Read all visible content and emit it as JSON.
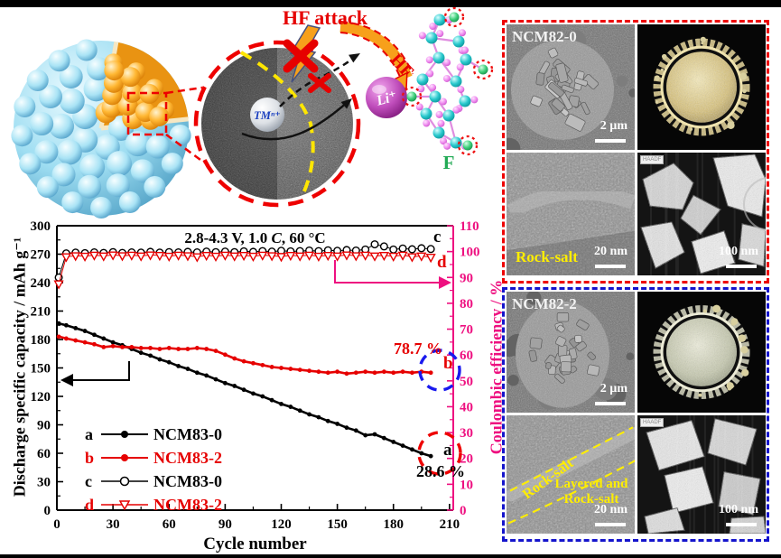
{
  "scene": {
    "hf_attack": "HF attack",
    "hf": "HF",
    "li_ion": "Li⁺",
    "tm_ion": "TMⁿ⁺",
    "fluorine": "F"
  },
  "chart": {
    "condition_prefix": "2.8-4.3 V, 1.0 ",
    "condition_italic": "C",
    "condition_suffix": ", 60 °C",
    "x_label": "Cycle number",
    "y_left_label": "Discharge specific capacity / mAh g⁻¹",
    "y_right_label": "Coulombic efficiency / %",
    "legend": [
      {
        "key": "a",
        "label": "NCM83-0"
      },
      {
        "key": "b",
        "label": "NCM83-2"
      },
      {
        "key": "c",
        "label": "NCM83-0"
      },
      {
        "key": "d",
        "label": "NCM83-2"
      }
    ],
    "annotations": {
      "b_retention": "78.7 %",
      "a_retention": "28.6 %",
      "end_label_a": "a",
      "end_label_b": "b",
      "end_label_c": "c",
      "end_label_d": "d"
    },
    "colors": {
      "right_axis": "#ee1080",
      "series_red": "#e60000",
      "series_black": "#000000",
      "circle_blue": "#1a1aee",
      "circle_red": "#ee0000"
    }
  },
  "chart_data": {
    "type": "line",
    "title": "2.8-4.3 V, 1.0 C, 60 °C",
    "xlabel": "Cycle number",
    "ylabel_left": "Discharge specific capacity / mAh g⁻¹",
    "ylabel_right": "Coulombic efficiency / %",
    "xlim": [
      0,
      212
    ],
    "x_ticks": [
      0,
      30,
      60,
      90,
      120,
      150,
      180,
      210
    ],
    "ylim_left": [
      0,
      300
    ],
    "y_ticks_left": [
      0,
      30,
      60,
      90,
      120,
      150,
      180,
      210,
      240,
      270,
      300
    ],
    "ylim_right": [
      0,
      110
    ],
    "y_ticks_right": [
      0,
      10,
      20,
      30,
      40,
      50,
      60,
      70,
      80,
      90,
      100,
      110
    ],
    "legend_position": "lower-left",
    "grid": false,
    "capacity_retention": {
      "NCM83-0": "28.6 %",
      "NCM83-2": "78.7 %"
    },
    "series": [
      {
        "id": "a",
        "name": "NCM83-0 discharge capacity",
        "axis": "left",
        "color": "#000000",
        "marker": "filled-circle",
        "x": [
          1,
          5,
          10,
          15,
          20,
          25,
          30,
          35,
          40,
          45,
          50,
          55,
          60,
          65,
          70,
          75,
          80,
          85,
          90,
          95,
          100,
          105,
          110,
          115,
          120,
          125,
          130,
          135,
          140,
          145,
          150,
          155,
          160,
          165,
          170,
          175,
          180,
          185,
          190,
          195,
          200
        ],
        "y": [
          197,
          195,
          192,
          189,
          185,
          181,
          177,
          174,
          170,
          166,
          163,
          159,
          156,
          152,
          149,
          145,
          142,
          138,
          134,
          131,
          127,
          123,
          120,
          116,
          112,
          109,
          105,
          101,
          98,
          94,
          91,
          87,
          84,
          79,
          80,
          76,
          72,
          68,
          64,
          60,
          57
        ]
      },
      {
        "id": "b",
        "name": "NCM83-2 discharge capacity",
        "axis": "left",
        "color": "#e60000",
        "marker": "filled-circle",
        "x": [
          1,
          5,
          10,
          15,
          20,
          25,
          30,
          35,
          40,
          45,
          50,
          55,
          60,
          65,
          70,
          75,
          80,
          85,
          90,
          95,
          100,
          105,
          110,
          115,
          120,
          125,
          130,
          135,
          140,
          145,
          150,
          155,
          160,
          165,
          170,
          175,
          180,
          185,
          190,
          195,
          200
        ],
        "y": [
          183,
          181,
          179,
          177,
          175,
          172,
          173,
          172,
          172,
          171,
          171,
          170,
          171,
          170,
          170,
          171,
          170,
          168,
          164,
          160,
          157,
          155,
          153,
          151,
          150,
          149,
          148,
          147,
          146,
          145,
          146,
          144,
          145,
          146,
          145,
          146,
          145,
          146,
          145,
          146,
          145
        ]
      },
      {
        "id": "c",
        "name": "NCM83-0 coulombic efficiency",
        "axis": "right",
        "color": "#000000",
        "marker": "open-circle",
        "x": [
          1,
          5,
          10,
          15,
          20,
          25,
          30,
          35,
          40,
          45,
          50,
          55,
          60,
          65,
          70,
          75,
          80,
          85,
          90,
          95,
          100,
          105,
          110,
          115,
          120,
          125,
          130,
          135,
          140,
          145,
          150,
          155,
          160,
          165,
          170,
          175,
          180,
          185,
          190,
          195,
          200
        ],
        "y": [
          90,
          99.3,
          99.6,
          99.4,
          99.7,
          99.5,
          99.8,
          99.5,
          99.7,
          99.6,
          99.9,
          99.6,
          99.8,
          99.7,
          99.9,
          99.7,
          100,
          99.8,
          100,
          99.8,
          100.1,
          99.9,
          100.2,
          100,
          100.3,
          100.1,
          100.2,
          100.4,
          100.2,
          100.5,
          100.3,
          100.6,
          100.4,
          100.8,
          102.8,
          102,
          100.8,
          101.2,
          100.9,
          101.3,
          101
        ]
      },
      {
        "id": "d",
        "name": "NCM83-2 coulombic efficiency",
        "axis": "right",
        "color": "#e60000",
        "marker": "open-triangle-down",
        "x": [
          1,
          5,
          10,
          15,
          20,
          25,
          30,
          35,
          40,
          45,
          50,
          55,
          60,
          65,
          70,
          75,
          80,
          85,
          90,
          95,
          100,
          105,
          110,
          115,
          120,
          125,
          130,
          135,
          140,
          145,
          150,
          155,
          160,
          165,
          170,
          175,
          180,
          185,
          190,
          195,
          200
        ],
        "y": [
          87.5,
          98,
          98.4,
          98.2,
          98.6,
          98.3,
          98.7,
          98.4,
          98.6,
          98.3,
          98.7,
          98.5,
          98.2,
          98.6,
          98.4,
          98,
          98.5,
          98.2,
          98.6,
          98.3,
          98.5,
          98.2,
          98.6,
          98.4,
          98.1,
          98.5,
          98.3,
          98.6,
          98.2,
          98.5,
          98.3,
          98.7,
          98.4,
          98.6,
          98.3,
          98.5,
          98.2,
          98.6,
          98,
          98.3,
          97.8
        ]
      }
    ]
  },
  "panels": {
    "ncm82_0": {
      "title": "NCM82-0",
      "sem_scale": "2 µm",
      "tem_label": "Rock-salt",
      "tem_scale": "20 nm",
      "haadf_tag": "HAADF",
      "haadf_scale": "100 nm"
    },
    "ncm82_2": {
      "title": "NCM82-2",
      "sem_scale": "2 µm",
      "tem_label_band": "Rock-salt",
      "tem_label_mixed": "Layered and Rock-salt",
      "tem_scale": "20 nm",
      "haadf_tag": "HAADF",
      "haadf_scale": "100 nm"
    }
  }
}
